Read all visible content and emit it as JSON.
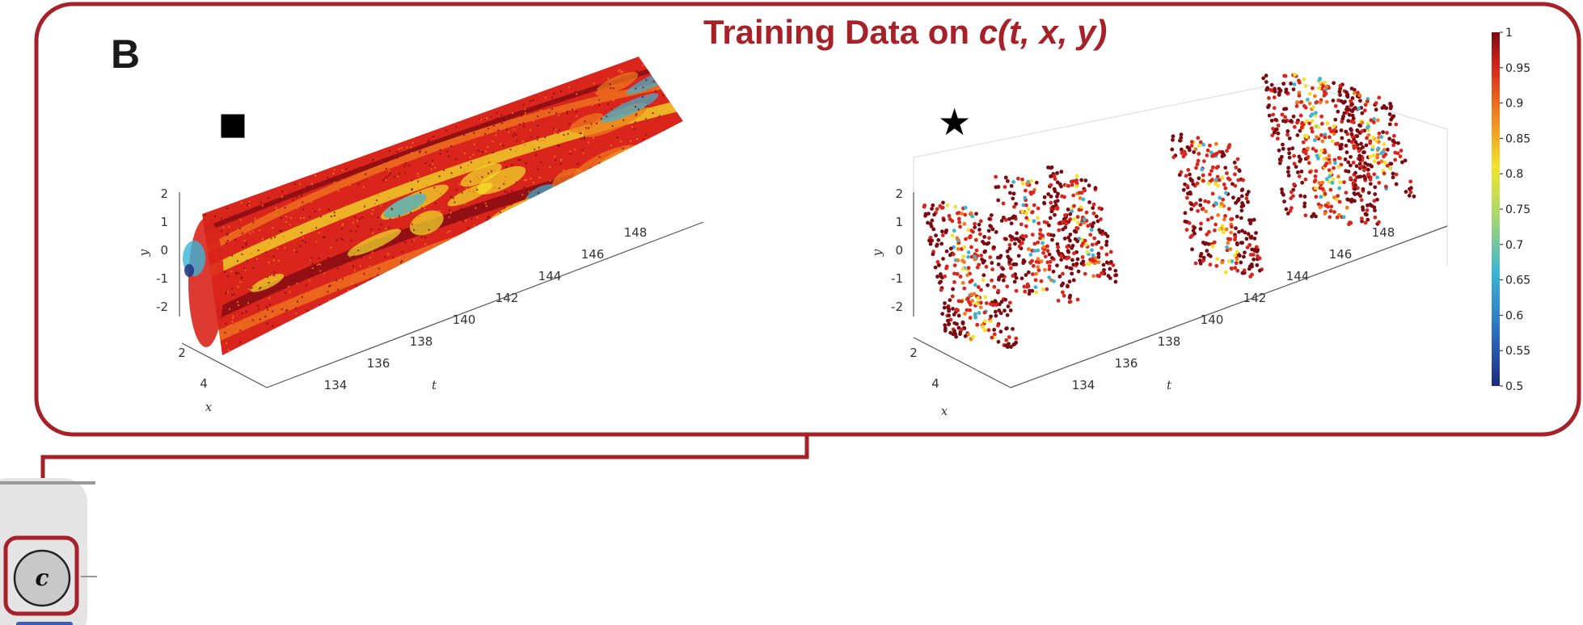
{
  "panel": {
    "letter": "B",
    "title_prefix": "Training Data on ",
    "title_func": "c(t, x, y)",
    "marker_left": "■",
    "marker_right": "★"
  },
  "colors": {
    "accent": "#a72128",
    "dark_red": "#7a0a12",
    "red": "#d9251c",
    "orange": "#f07a1e",
    "yellow": "#f2e32a",
    "cyan": "#3ab5d6",
    "navy": "#1b2a80"
  },
  "node": {
    "label": "c"
  },
  "chart_data": [
    {
      "type": "scatter",
      "subtype": "3d-volume-full",
      "xlabel": "t",
      "ylabel": "x",
      "zlabel": "y",
      "t_ticks": [
        "134",
        "136",
        "138",
        "140",
        "142",
        "144",
        "146",
        "148"
      ],
      "x_ticks": [
        "2",
        "4"
      ],
      "y_ticks": [
        "2",
        "1",
        "0",
        "-1",
        "-2"
      ],
      "value_name": "c"
    },
    {
      "type": "scatter",
      "subtype": "3d-sparse-samples",
      "xlabel": "t",
      "ylabel": "x",
      "zlabel": "y",
      "t_ticks": [
        "134",
        "136",
        "138",
        "140",
        "142",
        "144",
        "146",
        "148"
      ],
      "x_ticks": [
        "2",
        "4"
      ],
      "y_ticks": [
        "2",
        "1",
        "0",
        "-1",
        "-2"
      ],
      "colorbar": {
        "min": 0.5,
        "max": 1,
        "ticks": [
          "1",
          "0.95",
          "0.9",
          "0.85",
          "0.8",
          "0.75",
          "0.7",
          "0.65",
          "0.6",
          "0.55",
          "0.5"
        ]
      }
    }
  ]
}
